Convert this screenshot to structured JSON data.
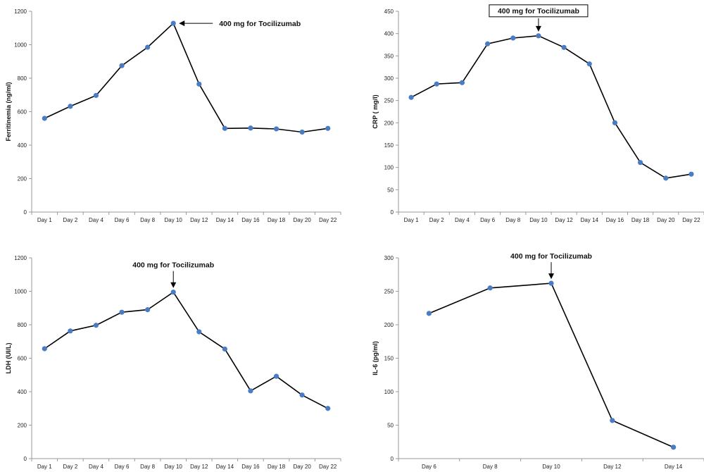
{
  "colors": {
    "line": "#000000",
    "marker": "#4a7cc4",
    "axis": "#9a9a9a"
  },
  "chart_data": [
    {
      "id": "ferritinemia",
      "type": "line",
      "ylabel": "Ferritinemia (ng/ml)",
      "categories": [
        "Day 1",
        "Day 2",
        "Day 4",
        "Day 6",
        "Day 8",
        "Day 10",
        "Day 12",
        "Day 14",
        "Day 16",
        "Day 18",
        "Day 20",
        "Day 22"
      ],
      "yticks": [
        "0",
        "200",
        "400",
        "600",
        "800",
        "1000",
        "1200"
      ],
      "ylim": [
        0,
        1200
      ],
      "values": [
        560,
        632,
        697,
        875,
        985,
        1128,
        765,
        500,
        502,
        497,
        478,
        500
      ],
      "annotation": {
        "text": "400 mg for Tocilizumab",
        "category": "Day 10",
        "boxed": false,
        "arrow": "left"
      }
    },
    {
      "id": "crp",
      "type": "line",
      "ylabel": "CRP ( mg/l)",
      "categories": [
        "Day 1",
        "Day 2",
        "Day 4",
        "Day 6",
        "Day 8",
        "Day 10",
        "Day 12",
        "Day 14",
        "Day 16",
        "Day 18",
        "Day 20",
        "Day 22"
      ],
      "yticks": [
        "0",
        "50",
        "100",
        "150",
        "200",
        "250",
        "300",
        "350",
        "400",
        "450"
      ],
      "ylim": [
        0,
        450
      ],
      "values": [
        257,
        287,
        290,
        377,
        390,
        395,
        369,
        332,
        200,
        111,
        76,
        85
      ],
      "annotation": {
        "text": "400 mg for Tocilizumab",
        "category": "Day 10",
        "boxed": true,
        "arrow": "down"
      }
    },
    {
      "id": "ldh",
      "type": "line",
      "ylabel": "LDH (UI/L)",
      "categories": [
        "Day 1",
        "Day 2",
        "Day 4",
        "Day 6",
        "Day 8",
        "Day 10",
        "Day 12",
        "Day 14",
        "Day 16",
        "Day 18",
        "Day 20",
        "Day 22"
      ],
      "yticks": [
        "0",
        "200",
        "400",
        "600",
        "800",
        "1000",
        "1200"
      ],
      "ylim": [
        0,
        1200
      ],
      "values": [
        657,
        763,
        797,
        875,
        890,
        995,
        758,
        655,
        405,
        492,
        380,
        300
      ],
      "annotation": {
        "text": "400 mg for Tocilizumab",
        "category": "Day 10",
        "boxed": false,
        "arrow": "down"
      }
    },
    {
      "id": "il6",
      "type": "line",
      "ylabel": "IL-6 (pg/ml)",
      "categories": [
        "Day 6",
        "Day 8",
        "Day 10",
        "Day 12",
        "Day 14"
      ],
      "yticks": [
        "0",
        "50",
        "100",
        "150",
        "200",
        "250",
        "300"
      ],
      "ylim": [
        0,
        300
      ],
      "values": [
        217,
        255,
        262,
        57,
        17
      ],
      "annotation": {
        "text": "400 mg for Tocilizumab",
        "category": "Day 10",
        "boxed": false,
        "arrow": "down"
      }
    }
  ]
}
